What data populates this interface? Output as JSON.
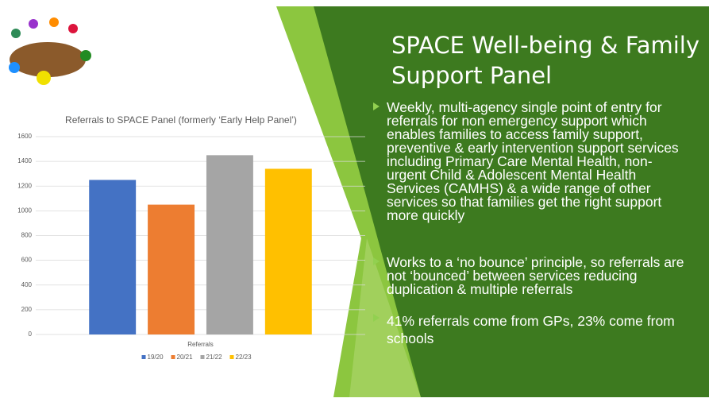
{
  "chart_data": {
    "type": "bar",
    "title": "Referrals to SPACE Panel (formerly ‘Early Help Panel’)",
    "categories": [
      "Referrals"
    ],
    "series": [
      {
        "name": "19/20",
        "color": "#4472c4",
        "values": [
          1250
        ]
      },
      {
        "name": "20/21",
        "color": "#ed7d31",
        "values": [
          1050
        ]
      },
      {
        "name": "21/22",
        "color": "#a5a5a5",
        "values": [
          1450
        ]
      },
      {
        "name": "22/23",
        "color": "#ffc000",
        "values": [
          1340
        ]
      }
    ],
    "ylim": [
      0,
      1600
    ],
    "yticks": [
      0,
      200,
      400,
      600,
      800,
      1000,
      1200,
      1400,
      1600
    ],
    "grid": true,
    "legend": "bottom"
  },
  "slide": {
    "title": "SPACE Well-being & Family Support Panel",
    "bullets": [
      "Weekly, multi-agency single point of entry for referrals for non emergency support which enables families to access family support, preventive & early intervention support services including Primary Care Mental Health, non-urgent Child & Adolescent Mental Health Services (CAMHS) & a wide range of other services so that families get the right support more quickly",
      "Works to a ‘no bounce’ principle, so referrals are not ‘bounced’ between services reducing duplication & multiple referrals",
      "41% referrals come from GPs, 23% come from schools"
    ]
  }
}
